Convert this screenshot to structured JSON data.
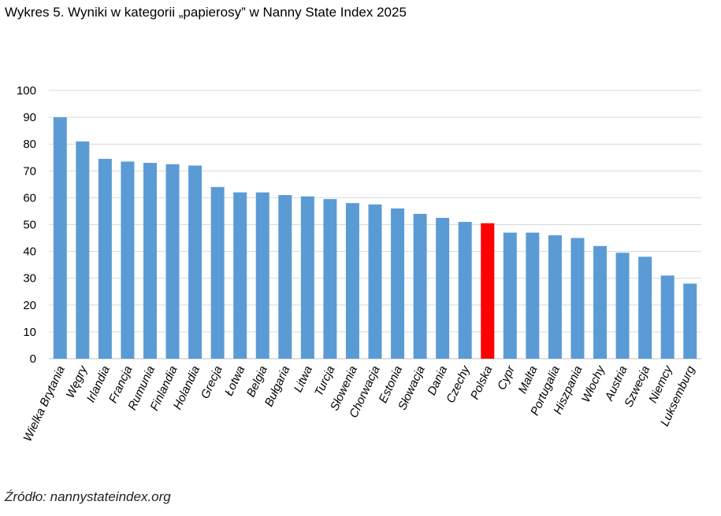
{
  "title": "Wykres 5. Wyniki w kategorii „papierosy” w Nanny State Index 2025",
  "source": "Źródło: nannystateindex.org",
  "colors": {
    "bar": "#5B9BD5",
    "highlight": "#FF0000",
    "grid": "#D9D9D9",
    "axis": "#BFBFBF"
  },
  "chart_data": {
    "type": "bar",
    "title": "Wykres 5. Wyniki w kategorii „papierosy” w Nanny State Index 2025",
    "xlabel": "",
    "ylabel": "",
    "ylim": [
      0,
      100
    ],
    "yticks": [
      0,
      10,
      20,
      30,
      40,
      50,
      60,
      70,
      80,
      90,
      100
    ],
    "grid": true,
    "legend": "none",
    "highlight": "Polska",
    "categories": [
      "Wielka Brytania",
      "Węgry",
      "Irlandia",
      "Francja",
      "Rumunia",
      "Finlandia",
      "Holandia",
      "Grecja",
      "Łotwa",
      "Belgia",
      "Bułgaria",
      "Litwa",
      "Turcja",
      "Słowenia",
      "Chorwacja",
      "Estonia",
      "Słowacja",
      "Dania",
      "Czechy",
      "Polska",
      "Cypr",
      "Malta",
      "Portugalia",
      "Hiszpania",
      "Włochy",
      "Austria",
      "Szwecja",
      "Niemcy",
      "Luksemburg"
    ],
    "values": [
      90,
      81,
      74.5,
      73.5,
      73,
      72.5,
      72,
      64,
      62,
      62,
      61,
      60.5,
      59.5,
      58,
      57.5,
      56,
      54,
      52.5,
      51,
      50.5,
      47,
      47,
      46,
      45,
      42,
      39.5,
      38,
      31,
      28
    ]
  }
}
